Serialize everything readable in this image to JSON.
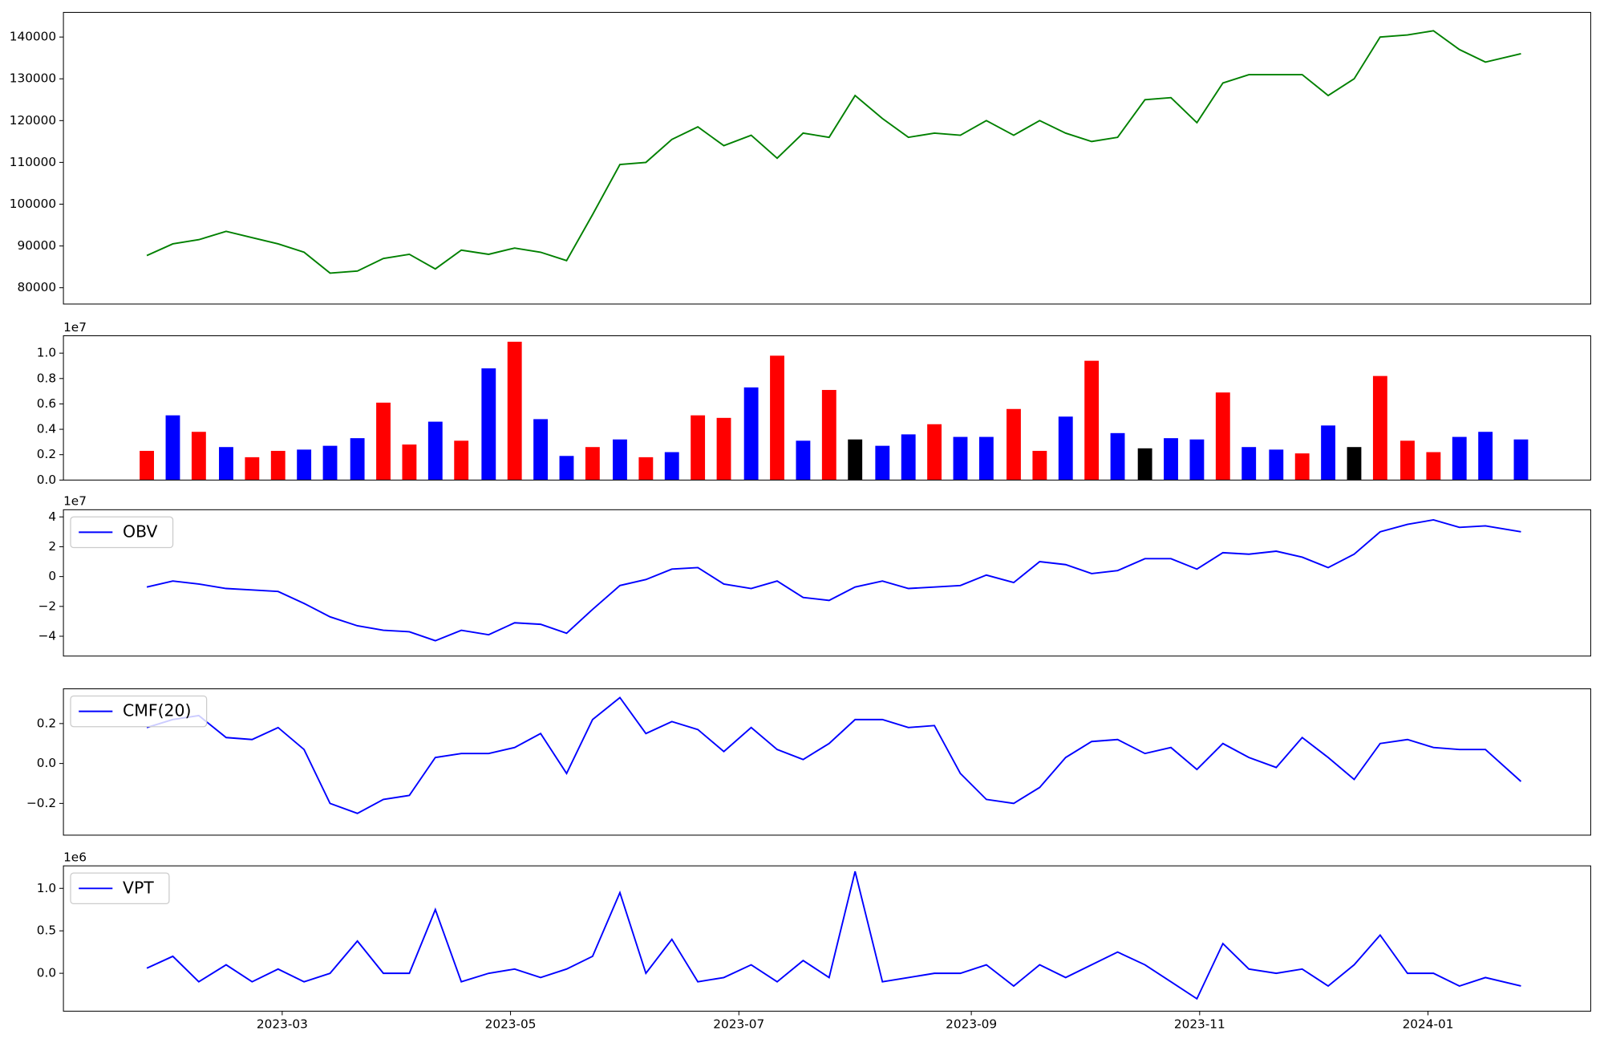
{
  "chart_data": [
    {
      "type": "line",
      "color": "green",
      "x": [
        2023.063,
        2023.082,
        2023.101,
        2023.121,
        2023.14,
        2023.159,
        2023.178,
        2023.197,
        2023.217,
        2023.236,
        2023.255,
        2023.274,
        2023.293,
        2023.313,
        2023.332,
        2023.351,
        2023.37,
        2023.389,
        2023.409,
        2023.428,
        2023.447,
        2023.466,
        2023.485,
        2023.505,
        2023.524,
        2023.543,
        2023.562,
        2023.581,
        2023.601,
        2023.62,
        2023.639,
        2023.658,
        2023.677,
        2023.697,
        2023.716,
        2023.735,
        2023.754,
        2023.773,
        2023.793,
        2023.812,
        2023.831,
        2023.85,
        2023.869,
        2023.889,
        2023.908,
        2023.927,
        2023.946,
        2023.965,
        2023.985,
        2024.004,
        2024.023,
        2024.042,
        2024.068
      ],
      "values": [
        87700,
        90500,
        91500,
        93500,
        92000,
        90500,
        88500,
        83500,
        84000,
        87000,
        88000,
        84500,
        89000,
        88000,
        89500,
        88500,
        86500,
        97500,
        109500,
        110000,
        115500,
        118500,
        114000,
        116500,
        111000,
        117000,
        116000,
        126000,
        120500,
        116000,
        117000,
        116500,
        120000,
        116500,
        120000,
        117000,
        115000,
        116000,
        125000,
        125500,
        119500,
        129000,
        131000,
        131000,
        131000,
        126000,
        130000,
        140000,
        140500,
        141500,
        137000,
        134000,
        136000
      ],
      "xlim": [
        2023.002,
        2024.119
      ],
      "ylim": [
        76100,
        145900
      ],
      "yticks": [
        80000,
        90000,
        100000,
        110000,
        120000,
        130000,
        140000
      ]
    },
    {
      "type": "bar",
      "offset_text": "1e7",
      "x": [
        2023.063,
        2023.082,
        2023.101,
        2023.121,
        2023.14,
        2023.159,
        2023.178,
        2023.197,
        2023.217,
        2023.236,
        2023.255,
        2023.274,
        2023.293,
        2023.313,
        2023.332,
        2023.351,
        2023.37,
        2023.389,
        2023.409,
        2023.428,
        2023.447,
        2023.466,
        2023.485,
        2023.505,
        2023.524,
        2023.543,
        2023.562,
        2023.581,
        2023.601,
        2023.62,
        2023.639,
        2023.658,
        2023.677,
        2023.697,
        2023.716,
        2023.735,
        2023.754,
        2023.773,
        2023.793,
        2023.812,
        2023.831,
        2023.85,
        2023.869,
        2023.889,
        2023.908,
        2023.927,
        2023.946,
        2023.965,
        2023.985,
        2024.004,
        2024.023,
        2024.042,
        2024.068
      ],
      "values": [
        2300000,
        5100000,
        3800000,
        2600000,
        1800000,
        2300000,
        2400000,
        2700000,
        3300000,
        6100000,
        2800000,
        4600000,
        3100000,
        8800000,
        10900000,
        4800000,
        1900000,
        2600000,
        3200000,
        1800000,
        2200000,
        5100000,
        4900000,
        7300000,
        9800000,
        3100000,
        7100000,
        3200000,
        2700000,
        3600000,
        4400000,
        3400000,
        3400000,
        5600000,
        2300000,
        5000000,
        9400000,
        3700000,
        2500000,
        3300000,
        3200000,
        6900000,
        2600000,
        2400000,
        2100000,
        4300000,
        2600000,
        8200000,
        3100000,
        2200000,
        3400000,
        3800000,
        3200000
      ],
      "colors": [
        "red",
        "blue",
        "red",
        "blue",
        "red",
        "red",
        "blue",
        "blue",
        "blue",
        "red",
        "red",
        "blue",
        "red",
        "blue",
        "red",
        "blue",
        "blue",
        "red",
        "blue",
        "red",
        "blue",
        "red",
        "red",
        "blue",
        "red",
        "blue",
        "red",
        "black",
        "blue",
        "blue",
        "red",
        "blue",
        "blue",
        "red",
        "red",
        "blue",
        "red",
        "blue",
        "black",
        "blue",
        "blue",
        "red",
        "blue",
        "blue",
        "red",
        "blue",
        "black",
        "red",
        "red",
        "red",
        "blue",
        "blue",
        "blue"
      ],
      "xlim": [
        2023.002,
        2024.119
      ],
      "ylim": [
        0,
        11370000
      ],
      "yticks": [
        {
          "value": 0,
          "label": "0.0"
        },
        {
          "value": 2000000,
          "label": "0.2"
        },
        {
          "value": 4000000,
          "label": "0.4"
        },
        {
          "value": 6000000,
          "label": "0.6"
        },
        {
          "value": 8000000,
          "label": "0.8"
        },
        {
          "value": 10000000,
          "label": "1.0"
        }
      ]
    },
    {
      "type": "line",
      "offset_text": "1e7",
      "legend": "upper left",
      "x": [
        2023.063,
        2023.082,
        2023.101,
        2023.121,
        2023.14,
        2023.159,
        2023.178,
        2023.197,
        2023.217,
        2023.236,
        2023.255,
        2023.274,
        2023.293,
        2023.313,
        2023.332,
        2023.351,
        2023.37,
        2023.389,
        2023.409,
        2023.428,
        2023.447,
        2023.466,
        2023.485,
        2023.505,
        2023.524,
        2023.543,
        2023.562,
        2023.581,
        2023.601,
        2023.62,
        2023.639,
        2023.658,
        2023.677,
        2023.697,
        2023.716,
        2023.735,
        2023.754,
        2023.773,
        2023.793,
        2023.812,
        2023.831,
        2023.85,
        2023.869,
        2023.889,
        2023.908,
        2023.927,
        2023.946,
        2023.965,
        2023.985,
        2024.004,
        2024.023,
        2024.042,
        2024.068
      ],
      "series": [
        {
          "name": "OBV",
          "color": "blue",
          "values": [
            -7000000,
            -3000000,
            -5000000,
            -8000000,
            -9000000,
            -10000000,
            -18000000,
            -27000000,
            -33000000,
            -36000000,
            -37000000,
            -43000000,
            -36000000,
            -39000000,
            -31000000,
            -32000000,
            -38000000,
            -22000000,
            -6000000,
            -2000000,
            5000000,
            6000000,
            -5000000,
            -8000000,
            -3000000,
            -14000000,
            -16000000,
            -7000000,
            -3000000,
            -8000000,
            -7000000,
            -6000000,
            1000000,
            -4000000,
            10000000,
            8000000,
            2000000,
            4000000,
            12000000,
            12000000,
            5000000,
            16000000,
            15000000,
            17000000,
            13000000,
            6000000,
            15000000,
            30000000,
            35000000,
            38000000,
            33000000,
            34000000,
            30000000
          ]
        }
      ],
      "xlim": [
        2023.002,
        2024.119
      ],
      "ylim": [
        -53300000,
        44800000
      ],
      "yticks": [
        {
          "value": -40000000,
          "label": "−4"
        },
        {
          "value": -20000000,
          "label": "−2"
        },
        {
          "value": 0,
          "label": "0"
        },
        {
          "value": 20000000,
          "label": "2"
        },
        {
          "value": 40000000,
          "label": "4"
        }
      ]
    },
    {
      "type": "line",
      "legend": "upper left",
      "x": [
        2023.063,
        2023.082,
        2023.101,
        2023.121,
        2023.14,
        2023.159,
        2023.178,
        2023.197,
        2023.217,
        2023.236,
        2023.255,
        2023.274,
        2023.293,
        2023.313,
        2023.332,
        2023.351,
        2023.37,
        2023.389,
        2023.409,
        2023.428,
        2023.447,
        2023.466,
        2023.485,
        2023.505,
        2023.524,
        2023.543,
        2023.562,
        2023.581,
        2023.601,
        2023.62,
        2023.639,
        2023.658,
        2023.677,
        2023.697,
        2023.716,
        2023.735,
        2023.754,
        2023.773,
        2023.793,
        2023.812,
        2023.831,
        2023.85,
        2023.869,
        2023.889,
        2023.908,
        2023.927,
        2023.946,
        2023.965,
        2023.985,
        2024.004,
        2024.023,
        2024.042,
        2024.068
      ],
      "series": [
        {
          "name": "CMF(20)",
          "color": "blue",
          "values": [
            0.18,
            0.22,
            0.24,
            0.13,
            0.12,
            0.18,
            0.07,
            -0.2,
            -0.25,
            -0.18,
            -0.16,
            0.03,
            0.05,
            0.05,
            0.08,
            0.15,
            -0.05,
            0.22,
            0.33,
            0.15,
            0.21,
            0.17,
            0.06,
            0.18,
            0.07,
            0.02,
            0.1,
            0.22,
            0.22,
            0.18,
            0.19,
            -0.05,
            -0.18,
            -0.2,
            -0.12,
            0.03,
            0.11,
            0.12,
            0.05,
            0.08,
            -0.03,
            0.1,
            0.03,
            -0.02,
            0.13,
            0.03,
            -0.08,
            0.1,
            0.12,
            0.08,
            0.07,
            0.07,
            -0.09
          ]
        }
      ],
      "xlim": [
        2023.002,
        2024.119
      ],
      "ylim": [
        -0.359,
        0.374
      ],
      "yticks": [
        {
          "value": -0.2,
          "label": "−0.2"
        },
        {
          "value": 0,
          "label": "0.0"
        },
        0.2
      ]
    },
    {
      "type": "line",
      "offset_text": "1e6",
      "legend": "upper left",
      "x": [
        2023.063,
        2023.082,
        2023.101,
        2023.121,
        2023.14,
        2023.159,
        2023.178,
        2023.197,
        2023.217,
        2023.236,
        2023.255,
        2023.274,
        2023.293,
        2023.313,
        2023.332,
        2023.351,
        2023.37,
        2023.389,
        2023.409,
        2023.428,
        2023.447,
        2023.466,
        2023.485,
        2023.505,
        2023.524,
        2023.543,
        2023.562,
        2023.581,
        2023.601,
        2023.62,
        2023.639,
        2023.658,
        2023.677,
        2023.697,
        2023.716,
        2023.735,
        2023.754,
        2023.773,
        2023.793,
        2023.812,
        2023.831,
        2023.85,
        2023.869,
        2023.889,
        2023.908,
        2023.927,
        2023.946,
        2023.965,
        2023.985,
        2024.004,
        2024.023,
        2024.042,
        2024.068
      ],
      "series": [
        {
          "name": "VPT",
          "color": "blue",
          "values": [
            60000,
            200000,
            -100000,
            100000,
            -100000,
            50000,
            -100000,
            0,
            380000,
            0,
            0,
            750000,
            -100000,
            0,
            50000,
            -50000,
            50000,
            200000,
            950000,
            0,
            400000,
            -100000,
            -50000,
            100000,
            -100000,
            150000,
            -50000,
            1200000,
            -100000,
            -50000,
            0,
            0,
            100000,
            -150000,
            100000,
            -50000,
            100000,
            250000,
            100000,
            -100000,
            -300000,
            350000,
            50000,
            0,
            50000,
            -150000,
            100000,
            450000,
            0,
            0,
            -150000,
            -50000,
            -150000
          ]
        }
      ],
      "xlim": [
        2023.002,
        2024.119
      ],
      "ylim": [
        -446000,
        1265000
      ],
      "yticks": [
        {
          "value": 0,
          "label": "0.0"
        },
        {
          "value": 500000,
          "label": "0.5"
        },
        {
          "value": 1000000,
          "label": "1.0"
        }
      ],
      "xticks": [
        {
          "value": 2023.162,
          "label": "2023-03"
        },
        {
          "value": 2023.329,
          "label": "2023-05"
        },
        {
          "value": 2023.496,
          "label": "2023-07"
        },
        {
          "value": 2023.666,
          "label": "2023-09"
        },
        {
          "value": 2023.833,
          "label": "2023-11"
        },
        {
          "value": 2024.0,
          "label": "2024-01"
        }
      ]
    }
  ]
}
